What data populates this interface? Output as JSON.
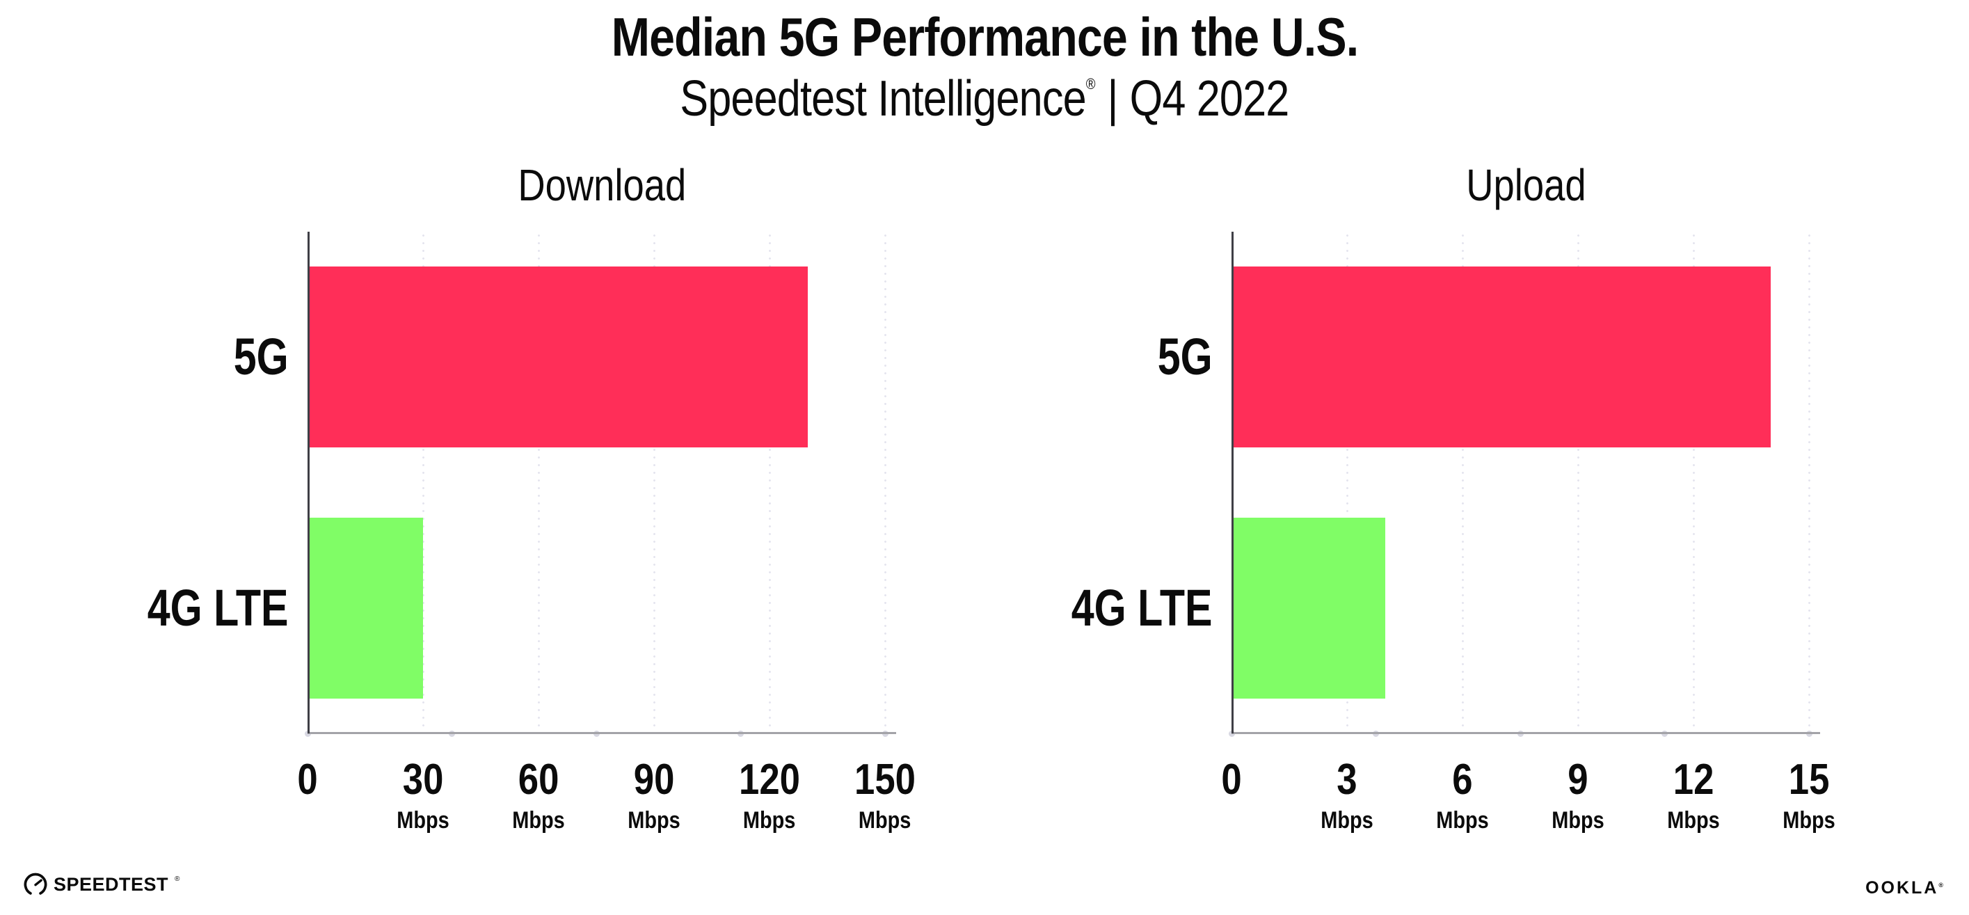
{
  "title": "Median 5G Performance in the U.S.",
  "subtitle": {
    "brand": "Speedtest Intelligence",
    "registered_mark": "®",
    "separator": "|",
    "period": "Q4 2022"
  },
  "chart_data": [
    {
      "type": "bar",
      "orientation": "horizontal",
      "title": "Download",
      "categories": [
        "5G",
        "4G LTE"
      ],
      "values": [
        130,
        30
      ],
      "unit": "Mbps",
      "xlim": [
        0,
        150
      ],
      "xticks": [
        0,
        30,
        60,
        90,
        120,
        150
      ],
      "grid": "dotted-vertical",
      "legend": "none",
      "bar_colors": [
        "#ff2e58",
        "#80fd66"
      ]
    },
    {
      "type": "bar",
      "orientation": "horizontal",
      "title": "Upload",
      "categories": [
        "5G",
        "4G LTE"
      ],
      "values": [
        14,
        4
      ],
      "unit": "Mbps",
      "xlim": [
        0,
        15
      ],
      "xticks": [
        0,
        3,
        6,
        9,
        12,
        15
      ],
      "grid": "dotted-vertical",
      "legend": "none",
      "bar_colors": [
        "#ff2e58",
        "#80fd66"
      ]
    }
  ],
  "footer": {
    "speedtest_logo_text": "SPEEDTEST",
    "speedtest_trademark": "®",
    "speedtest_icon": "gauge-icon",
    "ookla_logo_text": "OOKLA",
    "ookla_trademark": "®"
  },
  "colors": {
    "bar_5g": "#ff2e58",
    "bar_4g_lte": "#80fd66",
    "gridline": "#e4e4ee",
    "x_axis_line": "#a3a3a8",
    "y_axis_line": "#3f3f46",
    "axis_dot": "#d8d8e2",
    "text": "#0b0b0b",
    "background": "#ffffff"
  }
}
